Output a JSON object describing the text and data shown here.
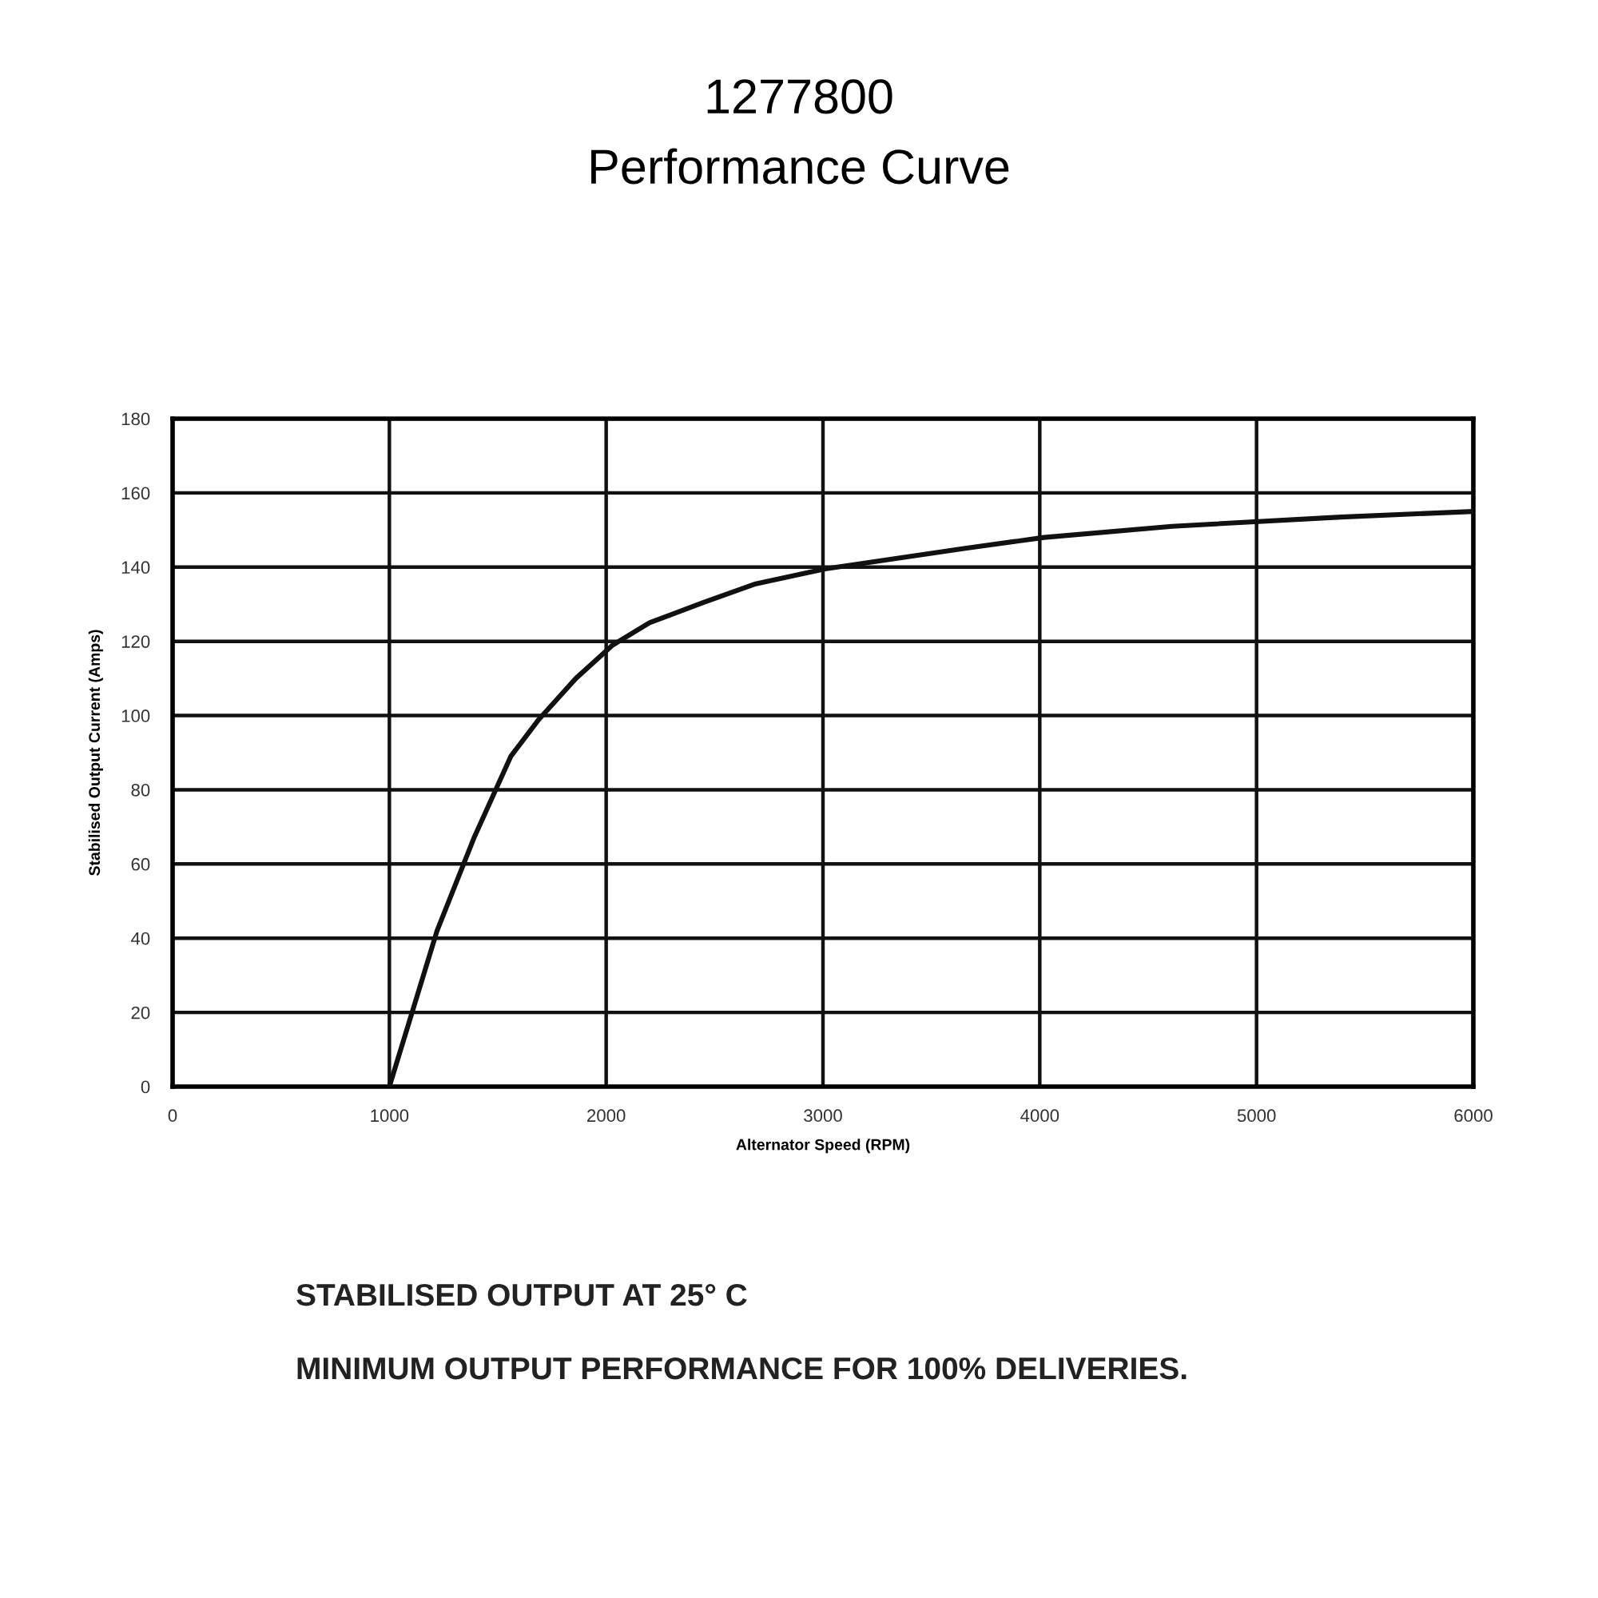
{
  "chart_data": {
    "type": "line",
    "title": "1277800",
    "subtitle": "Performance Curve",
    "xlabel": "Alternator Speed (RPM)",
    "ylabel": "Stabilised Output Current (Amps)",
    "x": [
      1000,
      1220,
      1390,
      1560,
      1690,
      1860,
      2030,
      2200,
      2450,
      2690,
      3010,
      3650,
      4020,
      4610,
      5390,
      6000
    ],
    "series": [
      {
        "color": "#111111",
        "values": [
          0,
          42,
          67,
          89,
          99,
          110,
          119,
          125,
          130.5,
          135.5,
          139.5,
          145,
          148,
          151,
          153.5,
          155
        ]
      }
    ],
    "xlim": [
      0,
      6000
    ],
    "xticks": [
      0,
      1000,
      2000,
      3000,
      4000,
      5000,
      6000
    ],
    "ylim": [
      0,
      180
    ],
    "yticks": [
      0,
      20,
      40,
      60,
      80,
      100,
      120,
      140,
      160,
      180
    ],
    "grid": true,
    "marker": "none",
    "line_style": "solid",
    "annotations": [
      "STABILISED OUTPUT AT 25° C",
      "MINIMUM OUTPUT PERFORMANCE FOR 100% DELIVERIES."
    ]
  }
}
